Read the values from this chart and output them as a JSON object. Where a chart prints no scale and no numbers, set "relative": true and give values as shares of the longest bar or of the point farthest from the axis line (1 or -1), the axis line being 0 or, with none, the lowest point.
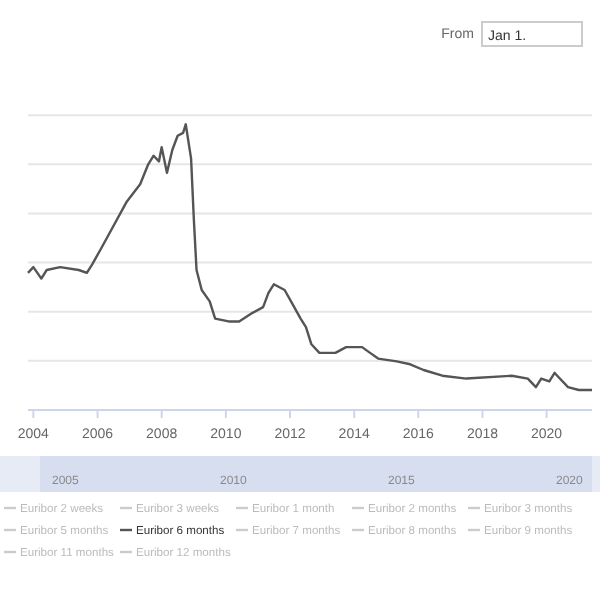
{
  "chart_data": {
    "type": "line",
    "relative": true,
    "grid": "y",
    "legend": "bottom",
    "marker": "none",
    "line_style": "solid",
    "x": [
      "2003-11",
      "2004-01",
      "2004-04",
      "2004-06",
      "2004-11",
      "2005-06",
      "2005-09",
      "2005-11",
      "2006-02",
      "2006-05",
      "2006-12",
      "2007-05",
      "2007-08",
      "2007-10",
      "2007-12",
      "2008-01",
      "2008-03",
      "2008-05",
      "2008-07",
      "2008-09",
      "2008-10",
      "2008-12",
      "2009-01",
      "2009-02",
      "2009-04",
      "2009-07",
      "2009-09",
      "2010-02",
      "2010-06",
      "2010-11",
      "2011-03",
      "2011-05",
      "2011-07",
      "2011-11",
      "2012-02",
      "2012-05",
      "2012-07",
      "2012-09",
      "2012-12",
      "2013-06",
      "2013-10",
      "2014-04",
      "2014-07",
      "2014-10",
      "2015-05",
      "2015-10",
      "2016-03",
      "2016-10",
      "2017-07",
      "2018-12",
      "2019-06",
      "2019-09",
      "2019-11",
      "2020-02",
      "2020-04",
      "2020-05",
      "2020-09",
      "2021-01",
      "2021-06"
    ],
    "xlim": [
      "2003-11",
      "2021-06"
    ],
    "xticks": [
      "2004",
      "2006",
      "2008",
      "2010",
      "2012",
      "2014",
      "2016",
      "2018",
      "2020"
    ],
    "series": [
      {
        "name": "Euribor 2 weeks",
        "color": "#cccccc",
        "values": [
          null,
          null,
          null,
          null,
          null,
          null,
          null,
          null,
          null,
          null,
          null,
          null,
          null,
          null,
          null,
          null,
          null,
          null,
          null,
          null,
          null,
          null,
          null,
          null,
          null,
          null,
          null,
          null,
          null,
          null,
          null,
          null,
          null,
          null,
          null,
          null,
          null,
          null,
          null,
          null,
          null,
          null,
          null,
          null,
          null,
          null,
          null,
          null,
          null,
          null,
          null,
          null,
          null,
          null,
          null,
          null,
          null,
          null,
          null
        ]
      },
      {
        "name": "Euribor 3 weeks",
        "color": "#cccccc",
        "values": [
          null,
          null,
          null,
          null,
          null,
          null,
          null,
          null,
          null,
          null,
          null,
          null,
          null,
          null,
          null,
          null,
          null,
          null,
          null,
          null,
          null,
          null,
          null,
          null,
          null,
          null,
          null,
          null,
          null,
          null,
          null,
          null,
          null,
          null,
          null,
          null,
          null,
          null,
          null,
          null,
          null,
          null,
          null,
          null,
          null,
          null,
          null,
          null,
          null,
          null,
          null,
          null,
          null,
          null,
          null,
          null,
          null,
          null,
          null
        ]
      },
      {
        "name": "Euribor 1 month",
        "color": "#cccccc",
        "values": [
          null,
          null,
          null,
          null,
          null,
          null,
          null,
          null,
          null,
          null,
          null,
          null,
          null,
          null,
          null,
          null,
          null,
          null,
          null,
          null,
          null,
          null,
          null,
          null,
          null,
          null,
          null,
          null,
          null,
          null,
          null,
          null,
          null,
          null,
          null,
          null,
          null,
          null,
          null,
          null,
          null,
          null,
          null,
          null,
          null,
          null,
          null,
          null,
          null,
          null,
          null,
          null,
          null,
          null,
          null,
          null,
          null,
          null,
          null
        ]
      },
      {
        "name": "Euribor 2 months",
        "color": "#cccccc",
        "values": [
          null,
          null,
          null,
          null,
          null,
          null,
          null,
          null,
          null,
          null,
          null,
          null,
          null,
          null,
          null,
          null,
          null,
          null,
          null,
          null,
          null,
          null,
          null,
          null,
          null,
          null,
          null,
          null,
          null,
          null,
          null,
          null,
          null,
          null,
          null,
          null,
          null,
          null,
          null,
          null,
          null,
          null,
          null,
          null,
          null,
          null,
          null,
          null,
          null,
          null,
          null,
          null,
          null,
          null,
          null,
          null,
          null,
          null,
          null
        ]
      },
      {
        "name": "Euribor 3 months",
        "color": "#cccccc",
        "values": [
          null,
          null,
          null,
          null,
          null,
          null,
          null,
          null,
          null,
          null,
          null,
          null,
          null,
          null,
          null,
          null,
          null,
          null,
          null,
          null,
          null,
          null,
          null,
          null,
          null,
          null,
          null,
          null,
          null,
          null,
          null,
          null,
          null,
          null,
          null,
          null,
          null,
          null,
          null,
          null,
          null,
          null,
          null,
          null,
          null,
          null,
          null,
          null,
          null,
          null,
          null,
          null,
          null,
          null,
          null,
          null,
          null,
          null,
          null
        ]
      },
      {
        "name": "Euribor 5 months",
        "color": "#cccccc",
        "values": [
          null,
          null,
          null,
          null,
          null,
          null,
          null,
          null,
          null,
          null,
          null,
          null,
          null,
          null,
          null,
          null,
          null,
          null,
          null,
          null,
          null,
          null,
          null,
          null,
          null,
          null,
          null,
          null,
          null,
          null,
          null,
          null,
          null,
          null,
          null,
          null,
          null,
          null,
          null,
          null,
          null,
          null,
          null,
          null,
          null,
          null,
          null,
          null,
          null,
          null,
          null,
          null,
          null,
          null,
          null,
          null,
          null,
          null,
          null
        ]
      },
      {
        "name": "Euribor 6 months",
        "color": "#555555",
        "values": [
          0.48,
          0.5,
          0.46,
          0.49,
          0.5,
          0.49,
          0.48,
          0.51,
          0.56,
          0.61,
          0.73,
          0.79,
          0.86,
          0.89,
          0.87,
          0.92,
          0.83,
          0.91,
          0.96,
          0.97,
          1,
          0.88,
          0.67,
          0.49,
          0.42,
          0.38,
          0.32,
          0.31,
          0.31,
          0.34,
          0.36,
          0.41,
          0.44,
          0.42,
          0.37,
          0.32,
          0.29,
          0.23,
          0.2,
          0.2,
          0.22,
          0.22,
          0.2,
          0.18,
          0.17,
          0.16,
          0.14,
          0.12,
          0.11,
          0.12,
          0.11,
          0.08,
          0.11,
          0.1,
          0.13,
          0.12,
          0.08,
          0.07,
          0.07
        ]
      },
      {
        "name": "Euribor 7 months",
        "color": "#cccccc",
        "values": [
          null,
          null,
          null,
          null,
          null,
          null,
          null,
          null,
          null,
          null,
          null,
          null,
          null,
          null,
          null,
          null,
          null,
          null,
          null,
          null,
          null,
          null,
          null,
          null,
          null,
          null,
          null,
          null,
          null,
          null,
          null,
          null,
          null,
          null,
          null,
          null,
          null,
          null,
          null,
          null,
          null,
          null,
          null,
          null,
          null,
          null,
          null,
          null,
          null,
          null,
          null,
          null,
          null,
          null,
          null,
          null,
          null,
          null,
          null
        ]
      },
      {
        "name": "Euribor 8 months",
        "color": "#cccccc",
        "values": [
          null,
          null,
          null,
          null,
          null,
          null,
          null,
          null,
          null,
          null,
          null,
          null,
          null,
          null,
          null,
          null,
          null,
          null,
          null,
          null,
          null,
          null,
          null,
          null,
          null,
          null,
          null,
          null,
          null,
          null,
          null,
          null,
          null,
          null,
          null,
          null,
          null,
          null,
          null,
          null,
          null,
          null,
          null,
          null,
          null,
          null,
          null,
          null,
          null,
          null,
          null,
          null,
          null,
          null,
          null,
          null,
          null,
          null,
          null
        ]
      },
      {
        "name": "Euribor 9 months",
        "color": "#cccccc",
        "values": [
          null,
          null,
          null,
          null,
          null,
          null,
          null,
          null,
          null,
          null,
          null,
          null,
          null,
          null,
          null,
          null,
          null,
          null,
          null,
          null,
          null,
          null,
          null,
          null,
          null,
          null,
          null,
          null,
          null,
          null,
          null,
          null,
          null,
          null,
          null,
          null,
          null,
          null,
          null,
          null,
          null,
          null,
          null,
          null,
          null,
          null,
          null,
          null,
          null,
          null,
          null,
          null,
          null,
          null,
          null,
          null,
          null,
          null,
          null
        ]
      },
      {
        "name": "Euribor 11 months",
        "color": "#cccccc",
        "values": [
          null,
          null,
          null,
          null,
          null,
          null,
          null,
          null,
          null,
          null,
          null,
          null,
          null,
          null,
          null,
          null,
          null,
          null,
          null,
          null,
          null,
          null,
          null,
          null,
          null,
          null,
          null,
          null,
          null,
          null,
          null,
          null,
          null,
          null,
          null,
          null,
          null,
          null,
          null,
          null,
          null,
          null,
          null,
          null,
          null,
          null,
          null,
          null,
          null,
          null,
          null,
          null,
          null,
          null,
          null,
          null,
          null,
          null,
          null
        ]
      },
      {
        "name": "Euribor 12 months",
        "color": "#cccccc",
        "values": [
          null,
          null,
          null,
          null,
          null,
          null,
          null,
          null,
          null,
          null,
          null,
          null,
          null,
          null,
          null,
          null,
          null,
          null,
          null,
          null,
          null,
          null,
          null,
          null,
          null,
          null,
          null,
          null,
          null,
          null,
          null,
          null,
          null,
          null,
          null,
          null,
          null,
          null,
          null,
          null,
          null,
          null,
          null,
          null,
          null,
          null,
          null,
          null,
          null,
          null,
          null,
          null,
          null,
          null,
          null,
          null,
          null,
          null,
          null
        ]
      }
    ],
    "annotations": [
      "From",
      "Jan 1.",
      "2005",
      "2010",
      "2015",
      "2020"
    ]
  }
}
